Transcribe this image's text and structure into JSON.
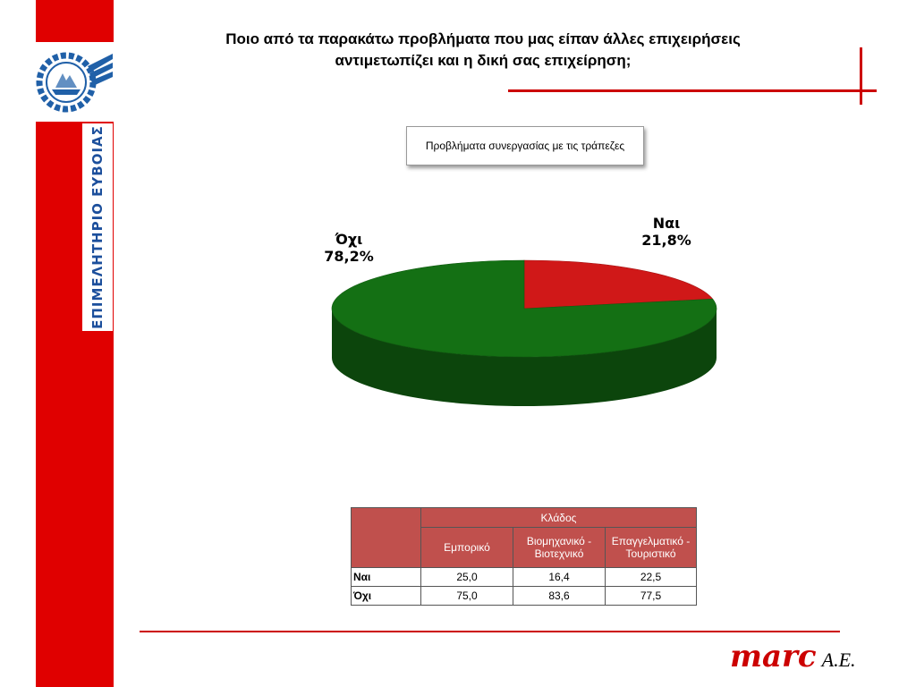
{
  "sidebar": {
    "organization": "ΕΠΙΜΕΛΗΤΗΡΙΟ ΕΥΒΟΙΑΣ",
    "logo_icon": "chamber-seal-icon"
  },
  "question": {
    "line1": "Ποιο από τα παρακάτω προβλήματα που μας είπαν άλλες επιχειρήσεις",
    "line2": "αντιμετωπίζει και η δική σας επιχείρηση;"
  },
  "colors": {
    "accent": "#cc0000",
    "table_header": "#c0504d",
    "pie_yes": "#d01818",
    "pie_no": "#147014"
  },
  "chart_data": {
    "type": "pie",
    "title": "Προβλήματα συνεργασίας  με τις τράπεζες",
    "slices": [
      {
        "label": "Ναι",
        "value": 21.8,
        "display": "21,8%",
        "color": "#d01818"
      },
      {
        "label": "Όχι",
        "value": 78.2,
        "display": "78,2%",
        "color": "#147014"
      }
    ]
  },
  "table": {
    "group_header": "Κλάδος",
    "columns": [
      "Εμπορικό",
      "Βιομηχανικό - Βιοτεχνικό",
      "Επαγγελματικό - Τουριστικό"
    ],
    "rows": [
      {
        "label": "Ναι",
        "values": [
          "25,0",
          "16,4",
          "22,5"
        ]
      },
      {
        "label": "Όχι",
        "values": [
          "75,0",
          "83,6",
          "77,5"
        ]
      }
    ]
  },
  "footer": {
    "brand_name": "marc",
    "brand_suffix": "A.E."
  }
}
